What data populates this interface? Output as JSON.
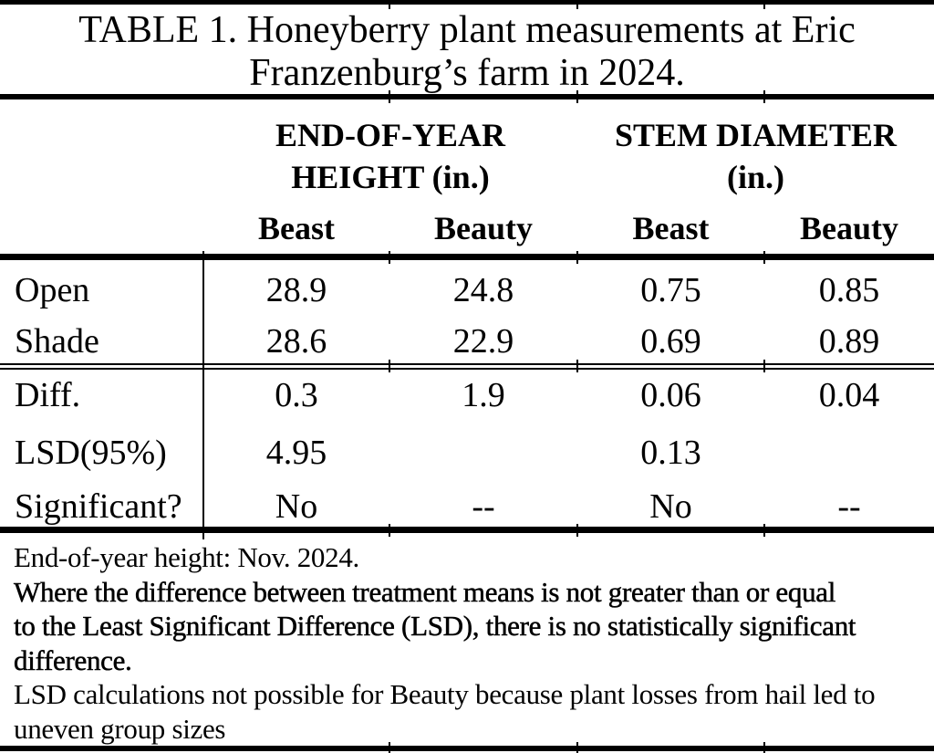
{
  "page": {
    "background_color": "#ffffff",
    "text_color": "#000000"
  },
  "table": {
    "title_lines": [
      "TABLE 1. Honeyberry plant measurements at Eric",
      "Franzenburg’s farm in 2024."
    ],
    "column_groups": [
      {
        "label": "END-OF-YEAR\nHEIGHT (in.)"
      },
      {
        "label": "STEM DIAMETER\n(in.)"
      }
    ],
    "sub_headers": [
      "Beast",
      "Beauty",
      "Beast",
      "Beauty"
    ],
    "body_rows": [
      {
        "label": "Open",
        "values": [
          "28.9",
          "24.8",
          "0.75",
          "0.85"
        ]
      },
      {
        "label": "Shade",
        "values": [
          "28.6",
          "22.9",
          "0.69",
          "0.89"
        ]
      }
    ],
    "stat_rows": [
      {
        "label": "Diff.",
        "values": [
          "0.3",
          "1.9",
          "0.06",
          "0.04"
        ]
      },
      {
        "label": "LSD(95%)",
        "values": [
          "4.95",
          "",
          "0.13",
          ""
        ]
      },
      {
        "label": "Significant?",
        "values": [
          "No",
          "--",
          "No",
          "--"
        ]
      }
    ],
    "notes": [
      {
        "lines": [
          "End-of-year height: Nov. 2024."
        ]
      },
      {
        "lines": [
          "Where the difference between treatment means is not greater than or equal",
          "to the Least Significant Difference (LSD), there is no statistically significant",
          "difference."
        ]
      },
      {
        "lines": [
          "LSD calculations not possible for Beauty because plant losses from hail led to",
          "uneven group sizes"
        ]
      }
    ]
  },
  "chart_data": {
    "type": "table",
    "title": "TABLE 1. Honeyberry plant measurements at Eric Franzenburg’s farm in 2024.",
    "column_groups": [
      "END-OF-YEAR HEIGHT (in.)",
      "STEM DIAMETER (in.)"
    ],
    "columns": [
      "Beast",
      "Beauty",
      "Beast",
      "Beauty"
    ],
    "rows": [
      {
        "label": "Open",
        "values": [
          28.9,
          24.8,
          0.75,
          0.85
        ]
      },
      {
        "label": "Shade",
        "values": [
          28.6,
          22.9,
          0.69,
          0.89
        ]
      },
      {
        "label": "Diff.",
        "values": [
          0.3,
          1.9,
          0.06,
          0.04
        ]
      },
      {
        "label": "LSD(95%)",
        "values": [
          4.95,
          null,
          0.13,
          null
        ]
      },
      {
        "label": "Significant?",
        "values": [
          "No",
          "--",
          "No",
          "--"
        ]
      }
    ]
  }
}
